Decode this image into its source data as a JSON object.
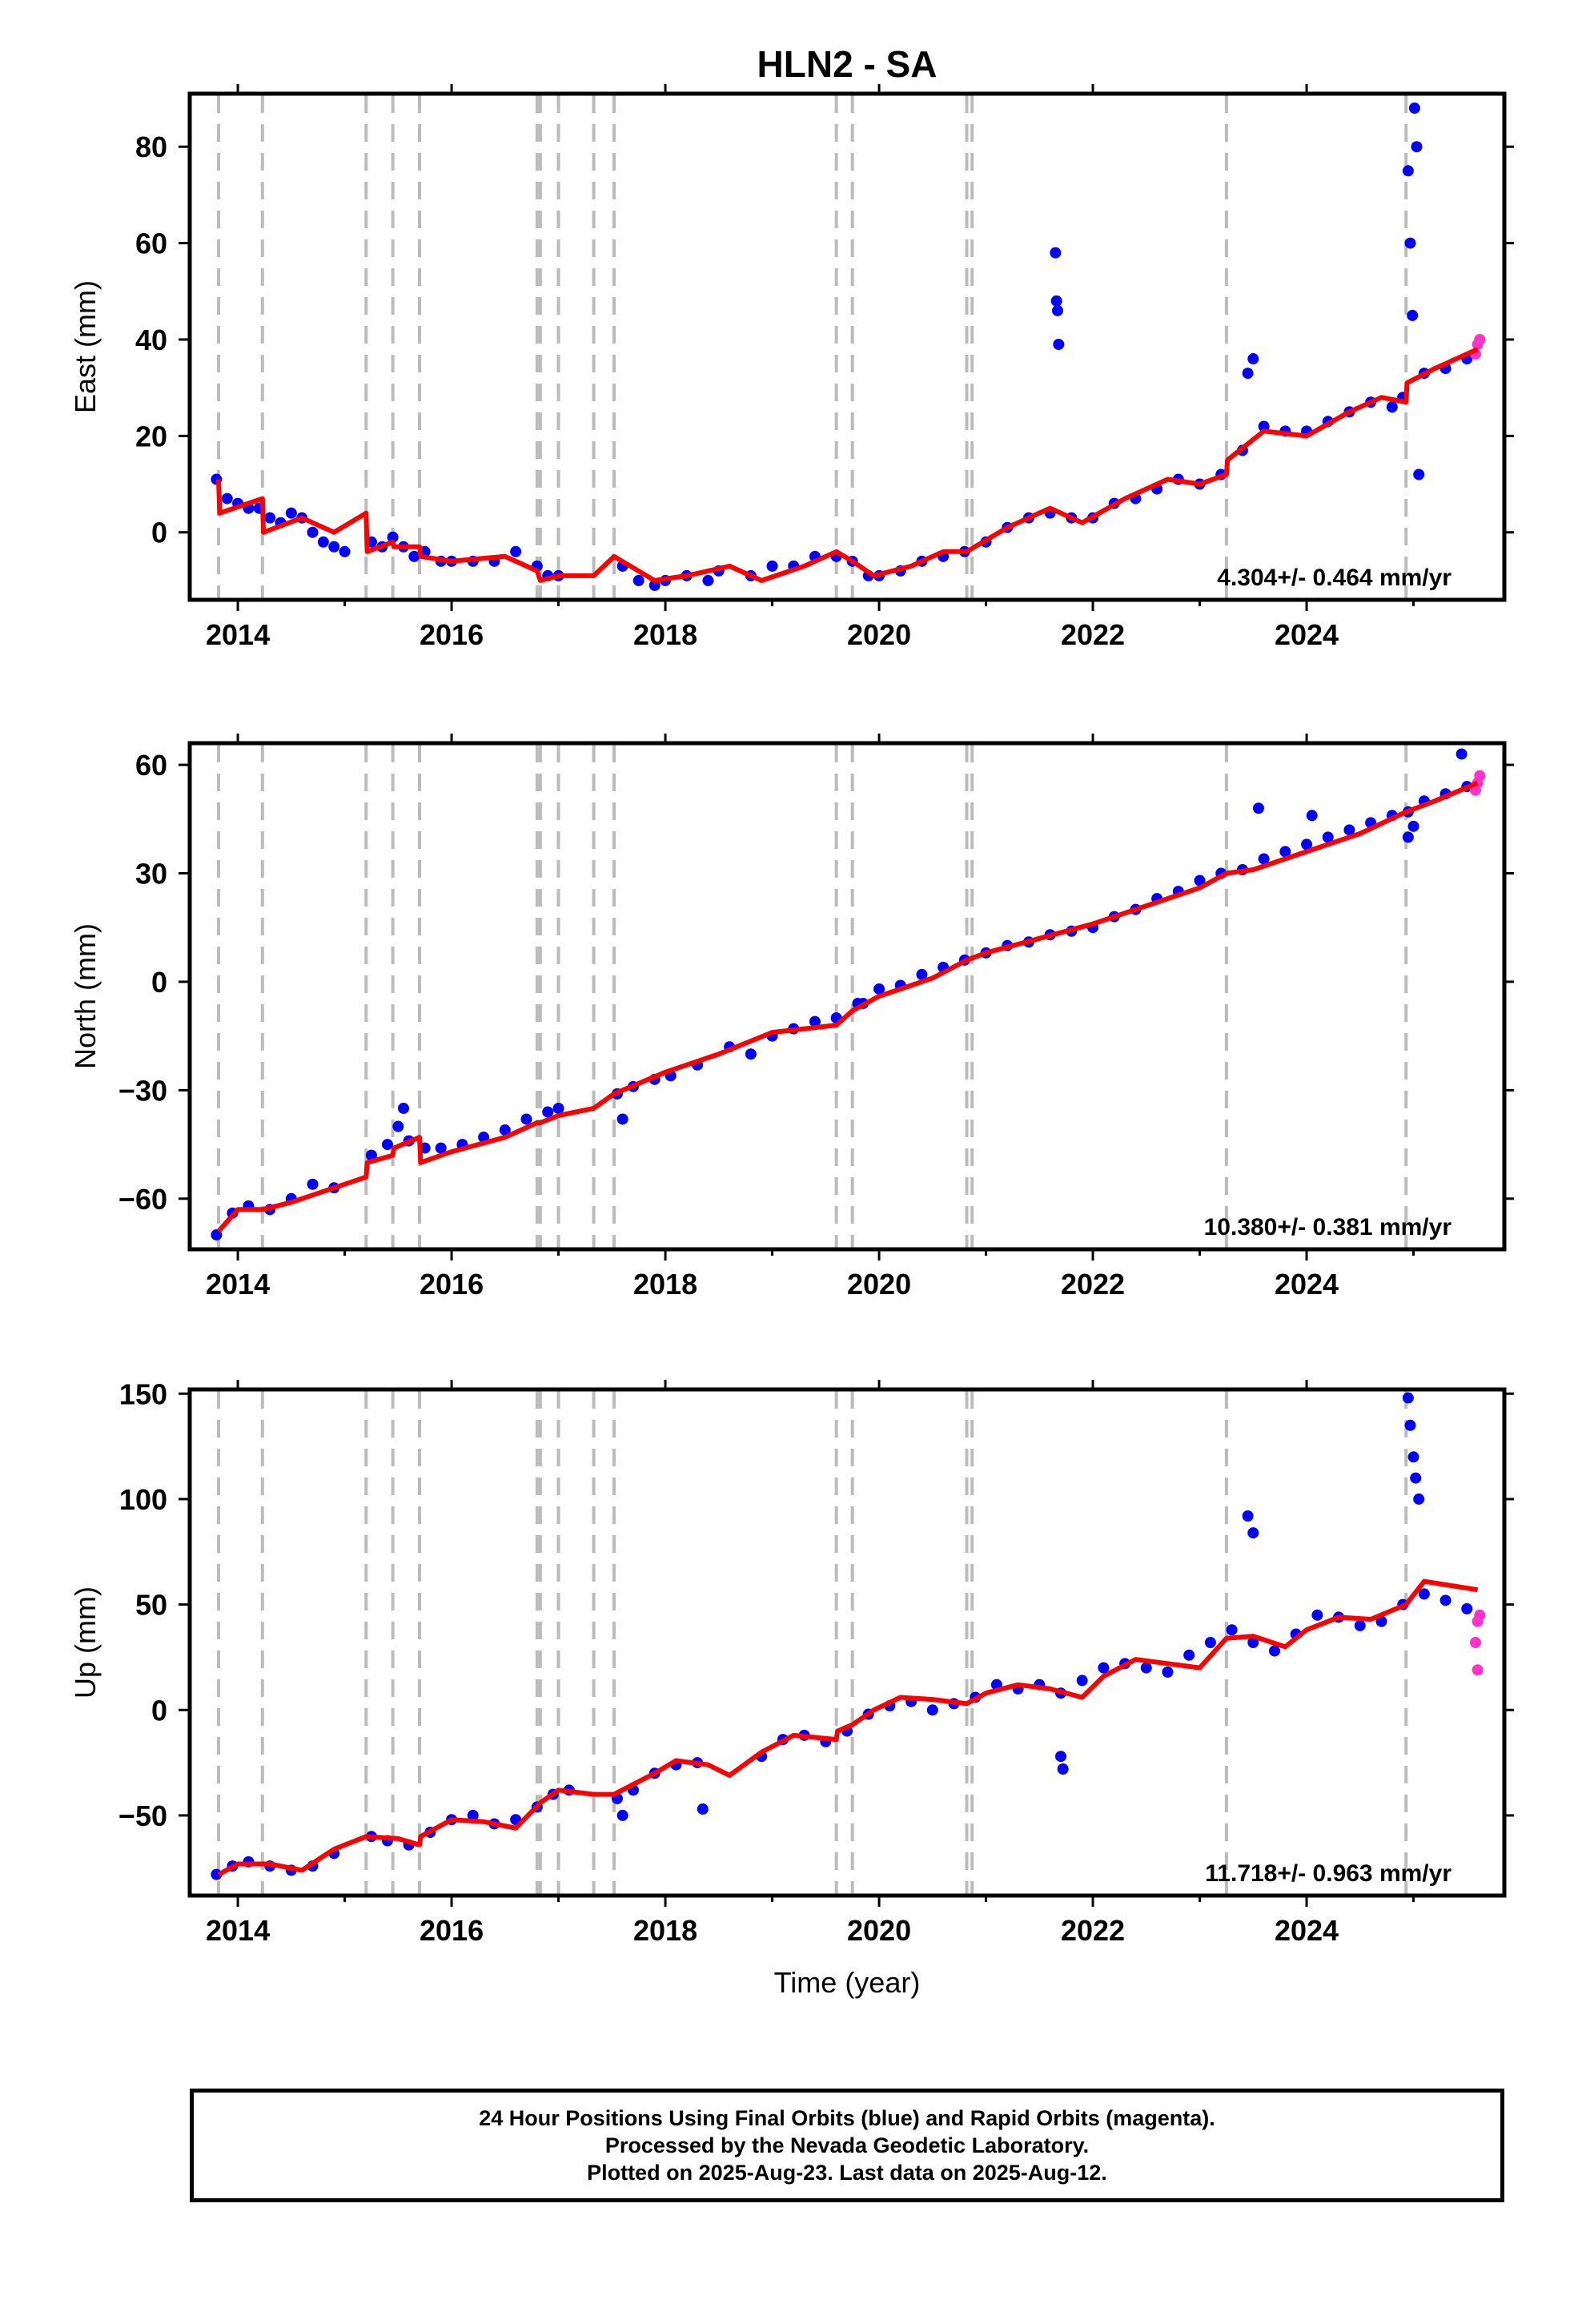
{
  "figure": {
    "title": "HLN2 - SA",
    "xlabel": "Time (year)",
    "footer": [
      "24 Hour Positions Using Final Orbits (blue) and Rapid Orbits (magenta).",
      "Processed by the Nevada Geodetic Laboratory.",
      "Plotted on 2025-Aug-23. Last data on 2025-Aug-12."
    ]
  },
  "colors": {
    "final_orbits": "#0000ff",
    "rapid_orbits": "#ff33cc",
    "model": "#ff0000",
    "event_lines": "#bbbbbb",
    "axes": "#000000"
  },
  "chart_data": [
    {
      "type": "scatter",
      "title": "HLN2 - SA",
      "ylabel": "East (mm)",
      "xlabel": "",
      "xlim": [
        2013.55,
        2025.85
      ],
      "ylim": [
        -14,
        91
      ],
      "xticks": [
        2014,
        2016,
        2018,
        2020,
        2022,
        2024
      ],
      "yticks": [
        0,
        20,
        40,
        60,
        80
      ],
      "rate_label": "4.304+/- 0.464 mm/yr",
      "grid": false,
      "events": [
        2013.82,
        2014.23,
        2015.2,
        2015.45,
        2015.7,
        2016.8,
        2016.83,
        2017.0,
        2017.33,
        2017.52,
        2019.6,
        2019.75,
        2020.82,
        2020.87,
        2023.25,
        2024.93
      ],
      "series": [
        {
          "name": "Final Orbits",
          "x": [
            2013.8,
            2013.9,
            2014.0,
            2014.1,
            2014.2,
            2014.3,
            2014.4,
            2014.5,
            2014.6,
            2014.7,
            2014.8,
            2014.9,
            2015.0,
            2015.25,
            2015.35,
            2015.45,
            2015.55,
            2015.65,
            2015.75,
            2015.9,
            2016.0,
            2016.2,
            2016.4,
            2016.6,
            2016.8,
            2016.9,
            2017.0,
            2017.6,
            2017.75,
            2017.9,
            2018.0,
            2018.2,
            2018.4,
            2018.5,
            2018.8,
            2019.0,
            2019.2,
            2019.4,
            2019.6,
            2019.75,
            2019.9,
            2020.0,
            2020.2,
            2020.4,
            2020.6,
            2020.8,
            2021.0,
            2021.2,
            2021.4,
            2021.6,
            2021.8,
            2022.0,
            2022.2,
            2022.4,
            2022.6,
            2022.8,
            2023.0,
            2023.2,
            2023.4,
            2023.6,
            2023.8,
            2024.0,
            2024.2,
            2024.4,
            2024.6,
            2024.8,
            2024.9,
            2025.1,
            2025.3,
            2025.5
          ],
          "y": [
            11,
            7,
            6,
            5,
            5,
            3,
            2,
            4,
            3,
            0,
            -2,
            -3,
            -4,
            -2,
            -3,
            -1,
            -3,
            -5,
            -4,
            -6,
            -6,
            -6,
            -6,
            -4,
            -7,
            -9,
            -9,
            -7,
            -10,
            -11,
            -10,
            -9,
            -10,
            -8,
            -9,
            -7,
            -7,
            -5,
            -5,
            -6,
            -9,
            -9,
            -8,
            -6,
            -5,
            -4,
            -2,
            1,
            3,
            4,
            3,
            3,
            6,
            7,
            9,
            11,
            10,
            12,
            17,
            22,
            21,
            21,
            23,
            25,
            27,
            26,
            28,
            33,
            34,
            36
          ]
        },
        {
          "name": "Final Orbits outliers",
          "x": [
            2021.65,
            2021.66,
            2021.67,
            2021.68,
            2023.45,
            2023.5,
            2024.95,
            2024.97,
            2024.99,
            2025.01,
            2025.03,
            2025.05
          ],
          "y": [
            58,
            48,
            46,
            39,
            33,
            36,
            75,
            60,
            45,
            88,
            80,
            12
          ]
        },
        {
          "name": "Rapid Orbits",
          "x": [
            2025.58,
            2025.6,
            2025.62
          ],
          "y": [
            37,
            39,
            40
          ]
        },
        {
          "name": "Model",
          "x": [
            2013.82,
            2013.83,
            2014.23,
            2014.24,
            2014.6,
            2014.9,
            2015.2,
            2015.21,
            2015.45,
            2015.46,
            2015.7,
            2015.71,
            2016.0,
            2016.5,
            2016.8,
            2016.83,
            2017.0,
            2017.33,
            2017.52,
            2017.9,
            2018.2,
            2018.6,
            2018.9,
            2019.3,
            2019.6,
            2019.75,
            2019.95,
            2020.3,
            2020.6,
            2020.82,
            2021.2,
            2021.6,
            2021.9,
            2022.3,
            2022.7,
            2023.0,
            2023.25,
            2023.26,
            2023.6,
            2024.0,
            2024.4,
            2024.7,
            2024.93,
            2024.94,
            2025.2,
            2025.6
          ],
          "y": [
            11,
            4,
            7,
            0,
            3,
            0,
            4,
            -4,
            -2,
            -3,
            -3,
            -5,
            -6,
            -5,
            -8,
            -10,
            -9,
            -9,
            -5,
            -10,
            -9,
            -7,
            -10,
            -7,
            -4,
            -6,
            -9,
            -7,
            -4,
            -4,
            1,
            5,
            2,
            7,
            11,
            10,
            12,
            15,
            21,
            20,
            25,
            28,
            27,
            31,
            34,
            38
          ]
        }
      ]
    },
    {
      "type": "scatter",
      "ylabel": "North (mm)",
      "xlabel": "",
      "xlim": [
        2013.55,
        2025.85
      ],
      "ylim": [
        -74,
        66
      ],
      "xticks": [
        2014,
        2016,
        2018,
        2020,
        2022,
        2024
      ],
      "yticks": [
        -60,
        -30,
        0,
        30,
        60
      ],
      "rate_label": "10.380+/- 0.381 mm/yr",
      "grid": false,
      "events": [
        2013.82,
        2014.23,
        2015.2,
        2015.45,
        2015.7,
        2016.8,
        2016.83,
        2017.0,
        2017.33,
        2017.52,
        2019.6,
        2019.75,
        2020.82,
        2020.87,
        2023.25,
        2024.93
      ],
      "series": [
        {
          "name": "Final Orbits",
          "x": [
            2013.8,
            2013.95,
            2014.1,
            2014.3,
            2014.5,
            2014.7,
            2014.9,
            2015.25,
            2015.4,
            2015.5,
            2015.6,
            2015.75,
            2015.9,
            2016.1,
            2016.3,
            2016.5,
            2016.7,
            2016.9,
            2017.0,
            2017.55,
            2017.7,
            2017.9,
            2018.05,
            2018.3,
            2018.6,
            2018.8,
            2019.0,
            2019.2,
            2019.4,
            2019.6,
            2019.8,
            2020.0,
            2020.2,
            2020.4,
            2020.6,
            2020.8,
            2021.0,
            2021.2,
            2021.4,
            2021.6,
            2021.8,
            2022.0,
            2022.2,
            2022.4,
            2022.6,
            2022.8,
            2023.0,
            2023.2,
            2023.4,
            2023.6,
            2023.8,
            2024.0,
            2024.2,
            2024.4,
            2024.6,
            2024.8,
            2024.95,
            2025.1,
            2025.3,
            2025.5
          ],
          "y": [
            -70,
            -64,
            -62,
            -63,
            -60,
            -56,
            -57,
            -48,
            -45,
            -40,
            -44,
            -46,
            -46,
            -45,
            -43,
            -41,
            -38,
            -36,
            -35,
            -31,
            -29,
            -27,
            -26,
            -23,
            -18,
            -20,
            -15,
            -13,
            -11,
            -10,
            -6,
            -2,
            -1,
            2,
            4,
            6,
            8,
            10,
            11,
            13,
            14,
            15,
            18,
            20,
            23,
            25,
            28,
            30,
            31,
            34,
            36,
            38,
            40,
            42,
            44,
            46,
            47,
            50,
            52,
            54
          ]
        },
        {
          "name": "Final Orbits outliers",
          "x": [
            2015.55,
            2017.6,
            2019.85,
            2023.55,
            2024.05,
            2024.95,
            2025.0,
            2025.45
          ],
          "y": [
            -35,
            -38,
            -6,
            48,
            46,
            40,
            43,
            63
          ]
        },
        {
          "name": "Rapid Orbits",
          "x": [
            2025.58,
            2025.6,
            2025.62
          ],
          "y": [
            53,
            55,
            57
          ]
        },
        {
          "name": "Model",
          "x": [
            2013.82,
            2014.0,
            2014.23,
            2014.5,
            2014.9,
            2015.2,
            2015.21,
            2015.45,
            2015.46,
            2015.7,
            2015.71,
            2016.0,
            2016.5,
            2016.8,
            2016.83,
            2017.0,
            2017.33,
            2017.52,
            2018.0,
            2018.5,
            2019.0,
            2019.6,
            2019.75,
            2020.0,
            2020.5,
            2020.82,
            2021.0,
            2021.5,
            2022.0,
            2022.5,
            2023.0,
            2023.25,
            2023.5,
            2024.0,
            2024.5,
            2024.93,
            2025.2,
            2025.6
          ],
          "y": [
            -69,
            -63,
            -63,
            -61,
            -57,
            -54,
            -50,
            -48,
            -46,
            -43,
            -50,
            -47,
            -43,
            -39,
            -39,
            -37,
            -35,
            -31,
            -25,
            -20,
            -14,
            -12,
            -8,
            -4,
            1,
            6,
            8,
            12,
            16,
            21,
            26,
            30,
            31,
            36,
            41,
            47,
            50,
            55
          ]
        }
      ]
    },
    {
      "type": "scatter",
      "ylabel": "Up (mm)",
      "xlabel": "Time (year)",
      "xlim": [
        2013.55,
        2025.85
      ],
      "ylim": [
        -88,
        152
      ],
      "xticks": [
        2014,
        2016,
        2018,
        2020,
        2022,
        2024
      ],
      "yticks": [
        -50,
        0,
        50,
        100,
        150
      ],
      "rate_label": "11.718+/- 0.963 mm/yr",
      "grid": false,
      "events": [
        2013.82,
        2014.23,
        2015.2,
        2015.45,
        2015.7,
        2016.8,
        2016.83,
        2017.0,
        2017.33,
        2017.52,
        2019.6,
        2019.75,
        2020.82,
        2020.87,
        2023.25,
        2024.93
      ],
      "series": [
        {
          "name": "Final Orbits",
          "x": [
            2013.8,
            2013.95,
            2014.1,
            2014.3,
            2014.5,
            2014.7,
            2014.9,
            2015.25,
            2015.4,
            2015.6,
            2015.8,
            2016.0,
            2016.2,
            2016.4,
            2016.6,
            2016.8,
            2016.95,
            2017.1,
            2017.55,
            2017.7,
            2017.9,
            2018.1,
            2018.3,
            2018.9,
            2019.1,
            2019.3,
            2019.5,
            2019.7,
            2019.9,
            2020.1,
            2020.3,
            2020.5,
            2020.7,
            2020.9,
            2021.1,
            2021.3,
            2021.5,
            2021.7,
            2021.9,
            2022.1,
            2022.3,
            2022.5,
            2022.7,
            2022.9,
            2023.1,
            2023.3,
            2023.5,
            2023.7,
            2023.9,
            2024.1,
            2024.3,
            2024.5,
            2024.7,
            2024.9,
            2025.1,
            2025.3,
            2025.5
          ],
          "y": [
            -78,
            -74,
            -72,
            -74,
            -76,
            -74,
            -68,
            -60,
            -62,
            -64,
            -58,
            -52,
            -50,
            -54,
            -52,
            -46,
            -40,
            -38,
            -42,
            -38,
            -30,
            -26,
            -25,
            -22,
            -14,
            -12,
            -15,
            -10,
            -2,
            2,
            4,
            0,
            3,
            6,
            12,
            10,
            12,
            8,
            14,
            20,
            22,
            20,
            18,
            26,
            32,
            38,
            32,
            28,
            36,
            45,
            44,
            40,
            42,
            50,
            55,
            52,
            48
          ]
        },
        {
          "name": "Final Orbits outliers",
          "x": [
            2021.7,
            2021.72,
            2023.45,
            2023.5,
            2024.95,
            2024.97,
            2025.0,
            2025.02,
            2025.05,
            2017.6,
            2018.35
          ],
          "y": [
            -22,
            -28,
            92,
            84,
            148,
            135,
            120,
            110,
            100,
            -50,
            -47
          ]
        },
        {
          "name": "Rapid Orbits",
          "x": [
            2025.58,
            2025.6,
            2025.62,
            2025.6
          ],
          "y": [
            32,
            42,
            45,
            19
          ]
        },
        {
          "name": "Model",
          "x": [
            2013.82,
            2014.0,
            2014.3,
            2014.6,
            2014.9,
            2015.2,
            2015.5,
            2015.7,
            2015.71,
            2016.0,
            2016.3,
            2016.6,
            2016.83,
            2017.0,
            2017.33,
            2017.52,
            2017.9,
            2018.1,
            2018.4,
            2018.6,
            2018.9,
            2019.2,
            2019.6,
            2019.61,
            2019.75,
            2019.95,
            2020.2,
            2020.5,
            2020.82,
            2021.0,
            2021.3,
            2021.6,
            2021.9,
            2022.1,
            2022.4,
            2022.7,
            2023.0,
            2023.25,
            2023.5,
            2023.8,
            2024.0,
            2024.3,
            2024.6,
            2024.93,
            2025.1,
            2025.6
          ],
          "y": [
            -78,
            -73,
            -73,
            -76,
            -66,
            -60,
            -61,
            -64,
            -60,
            -52,
            -53,
            -56,
            -44,
            -38,
            -40,
            -40,
            -30,
            -24,
            -26,
            -31,
            -20,
            -12,
            -14,
            -10,
            -7,
            0,
            6,
            5,
            3,
            8,
            12,
            10,
            6,
            16,
            24,
            22,
            20,
            34,
            35,
            30,
            38,
            44,
            43,
            50,
            61,
            57
          ]
        }
      ]
    }
  ]
}
